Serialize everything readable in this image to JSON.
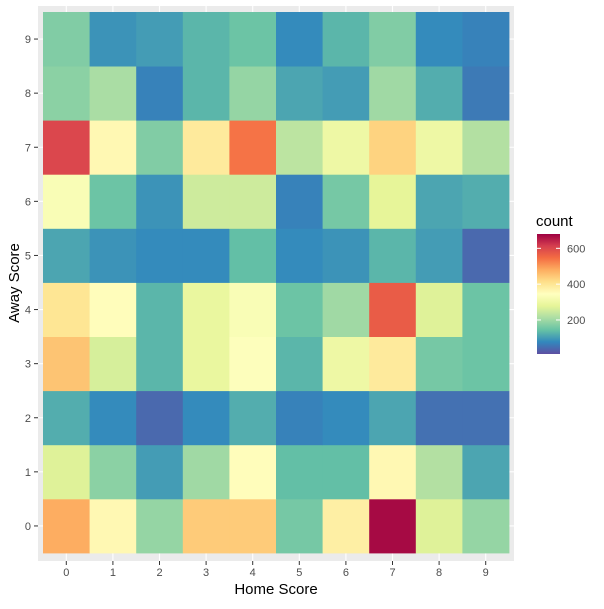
{
  "chart_data": {
    "type": "heatmap",
    "title": "",
    "xlabel": "Home Score",
    "ylabel": "Away Score",
    "x_categories": [
      "0",
      "1",
      "2",
      "3",
      "4",
      "5",
      "6",
      "7",
      "8",
      "9"
    ],
    "y_categories": [
      "0",
      "1",
      "2",
      "3",
      "4",
      "5",
      "6",
      "7",
      "8",
      "9"
    ],
    "values": [
      [
        480,
        360,
        190,
        440,
        440,
        160,
        380,
        670,
        270,
        190
      ],
      [
        270,
        180,
        100,
        200,
        350,
        140,
        140,
        360,
        220,
        110
      ],
      [
        120,
        80,
        40,
        80,
        120,
        70,
        80,
        110,
        50,
        50
      ],
      [
        450,
        260,
        130,
        290,
        340,
        130,
        300,
        390,
        160,
        150
      ],
      [
        400,
        350,
        130,
        290,
        330,
        150,
        200,
        570,
        270,
        150
      ],
      [
        110,
        90,
        80,
        80,
        140,
        80,
        90,
        130,
        100,
        40
      ],
      [
        330,
        150,
        90,
        250,
        250,
        70,
        160,
        280,
        110,
        120
      ],
      [
        600,
        360,
        170,
        390,
        540,
        230,
        300,
        430,
        300,
        220
      ],
      [
        180,
        210,
        70,
        130,
        190,
        110,
        100,
        200,
        120,
        60
      ],
      [
        170,
        90,
        100,
        130,
        150,
        80,
        130,
        170,
        80,
        70
      ]
    ],
    "value_range": [
      10,
      680
    ],
    "legend": {
      "title": "count",
      "position": "right",
      "ticks": [
        200,
        400,
        600
      ],
      "tick_labels": [
        "200",
        "400",
        "600"
      ]
    },
    "colorscale": "Spectral (reversed)",
    "grid": true
  },
  "colors": {
    "panel_background": "#ebebeb",
    "grid_major": "#ffffff",
    "axis_text": "#4d4d4d",
    "title_text": "#000000",
    "spectral": [
      "#5E4FA2",
      "#3288BD",
      "#66C2A5",
      "#ABDDA4",
      "#E6F598",
      "#FFFFBF",
      "#FEE08B",
      "#FDAE61",
      "#F46D43",
      "#D53E4F",
      "#9E0142"
    ]
  }
}
